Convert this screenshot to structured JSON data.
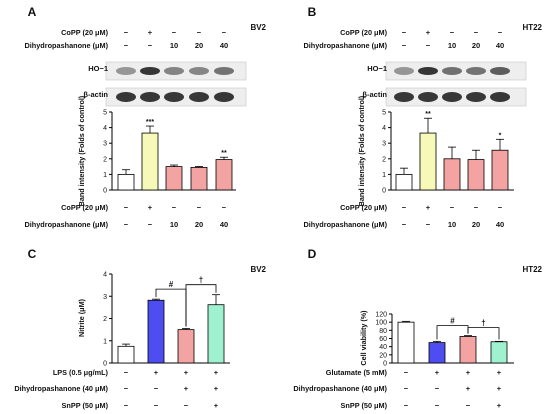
{
  "panels": {
    "A": {
      "letter": "A",
      "cell": "BV2",
      "header_rows": [
        {
          "label": "CoPP (20 μM)",
          "marks": [
            "−",
            "+",
            "−",
            "−",
            "−"
          ]
        },
        {
          "label": "Dihydropashanone (μM)",
          "marks": [
            "−",
            "−",
            "10",
            "20",
            "40"
          ]
        }
      ],
      "blots": [
        "HO−1",
        "β-actin"
      ],
      "footer_rows": [
        {
          "label": "CoPP (20 μM)",
          "marks": [
            "−",
            "+",
            "−",
            "−",
            "−"
          ]
        },
        {
          "label": "Dihydropashanone (μM)",
          "marks": [
            "−",
            "−",
            "10",
            "20",
            "40"
          ]
        }
      ]
    },
    "B": {
      "letter": "B",
      "cell": "HT22",
      "header_rows": [
        {
          "label": "CoPP (20 μM)",
          "marks": [
            "−",
            "+",
            "−",
            "−",
            "−"
          ]
        },
        {
          "label": "Dihydropashanone (μM)",
          "marks": [
            "−",
            "−",
            "10",
            "20",
            "40"
          ]
        }
      ],
      "blots": [
        "HO−1",
        "β-actin"
      ],
      "footer_rows": [
        {
          "label": "CoPP (20 μM)",
          "marks": [
            "−",
            "+",
            "−",
            "−",
            "−"
          ]
        },
        {
          "label": "Dihydropashanone (μM)",
          "marks": [
            "−",
            "−",
            "10",
            "20",
            "40"
          ]
        }
      ]
    },
    "C": {
      "letter": "C",
      "cell": "BV2",
      "hash": "#",
      "dagger": "†",
      "footer_rows": [
        {
          "label": "LPS (0.5 μg/mL)",
          "marks": [
            "−",
            "+",
            "+",
            "+"
          ]
        },
        {
          "label": "Dihydropashanone (40 μM)",
          "marks": [
            "−",
            "−",
            "+",
            "+"
          ]
        },
        {
          "label": "SnPP (50 μM)",
          "marks": [
            "−",
            "−",
            "−",
            "+"
          ]
        }
      ]
    },
    "D": {
      "letter": "D",
      "cell": "HT22",
      "hash": "#",
      "dagger": "†",
      "footer_rows": [
        {
          "label": "Glutamate (5 mM)",
          "marks": [
            "−",
            "+",
            "+",
            "+"
          ]
        },
        {
          "label": "Dihydropashanone (40 μM)",
          "marks": [
            "−",
            "−",
            "+",
            "+"
          ]
        },
        {
          "label": "SnPP (50 μM)",
          "marks": [
            "−",
            "−",
            "−",
            "+"
          ]
        }
      ]
    }
  },
  "colors": {
    "white": "#ffffff",
    "yellow": "#f7f9b8",
    "salmon": "#f4a3a3",
    "blue": "#4d4df2",
    "mint": "#9ff2cf",
    "axis": "#000000"
  },
  "chart_data": [
    {
      "panel": "A",
      "type": "bar",
      "ylabel": "Band intensity (Folds of control)",
      "ylim": [
        0,
        5
      ],
      "yticks": [
        "0",
        "1",
        "2",
        "3",
        "4",
        "5"
      ],
      "values": [
        1.0,
        3.65,
        1.5,
        1.45,
        1.95
      ],
      "errors": [
        0.3,
        0.45,
        0.1,
        0.06,
        0.15
      ],
      "annotations": [
        "",
        "***",
        "",
        "",
        "**"
      ],
      "bar_colors": [
        "white",
        "yellow",
        "salmon",
        "salmon",
        "salmon"
      ]
    },
    {
      "panel": "B",
      "type": "bar",
      "ylabel": "Band intensity (Folds of control)",
      "ylim": [
        0,
        5
      ],
      "yticks": [
        "0",
        "1",
        "2",
        "3",
        "4",
        "5"
      ],
      "values": [
        1.0,
        3.65,
        2.0,
        1.95,
        2.55
      ],
      "errors": [
        0.4,
        0.95,
        0.75,
        0.6,
        0.7
      ],
      "annotations": [
        "",
        "**",
        "",
        "",
        "*"
      ],
      "bar_colors": [
        "white",
        "yellow",
        "salmon",
        "salmon",
        "salmon"
      ]
    },
    {
      "panel": "C",
      "type": "bar",
      "ylabel": "Nitrite (μM)",
      "ylim": [
        0,
        4
      ],
      "yticks": [
        "0",
        "1",
        "2",
        "3",
        "4"
      ],
      "values": [
        0.75,
        2.82,
        1.5,
        2.62
      ],
      "errors": [
        0.1,
        0.05,
        0.05,
        0.45
      ],
      "bar_colors": [
        "white",
        "blue",
        "salmon",
        "mint"
      ]
    },
    {
      "panel": "D",
      "type": "bar",
      "ylabel": "Cell viability (%)",
      "ylim": [
        0,
        120
      ],
      "yticks": [
        "0",
        "20",
        "40",
        "60",
        "80",
        "100",
        "120"
      ],
      "values": [
        100,
        50,
        65,
        52
      ],
      "errors": [
        2,
        3,
        2,
        1
      ],
      "bar_colors": [
        "white",
        "blue",
        "salmon",
        "mint"
      ]
    }
  ]
}
